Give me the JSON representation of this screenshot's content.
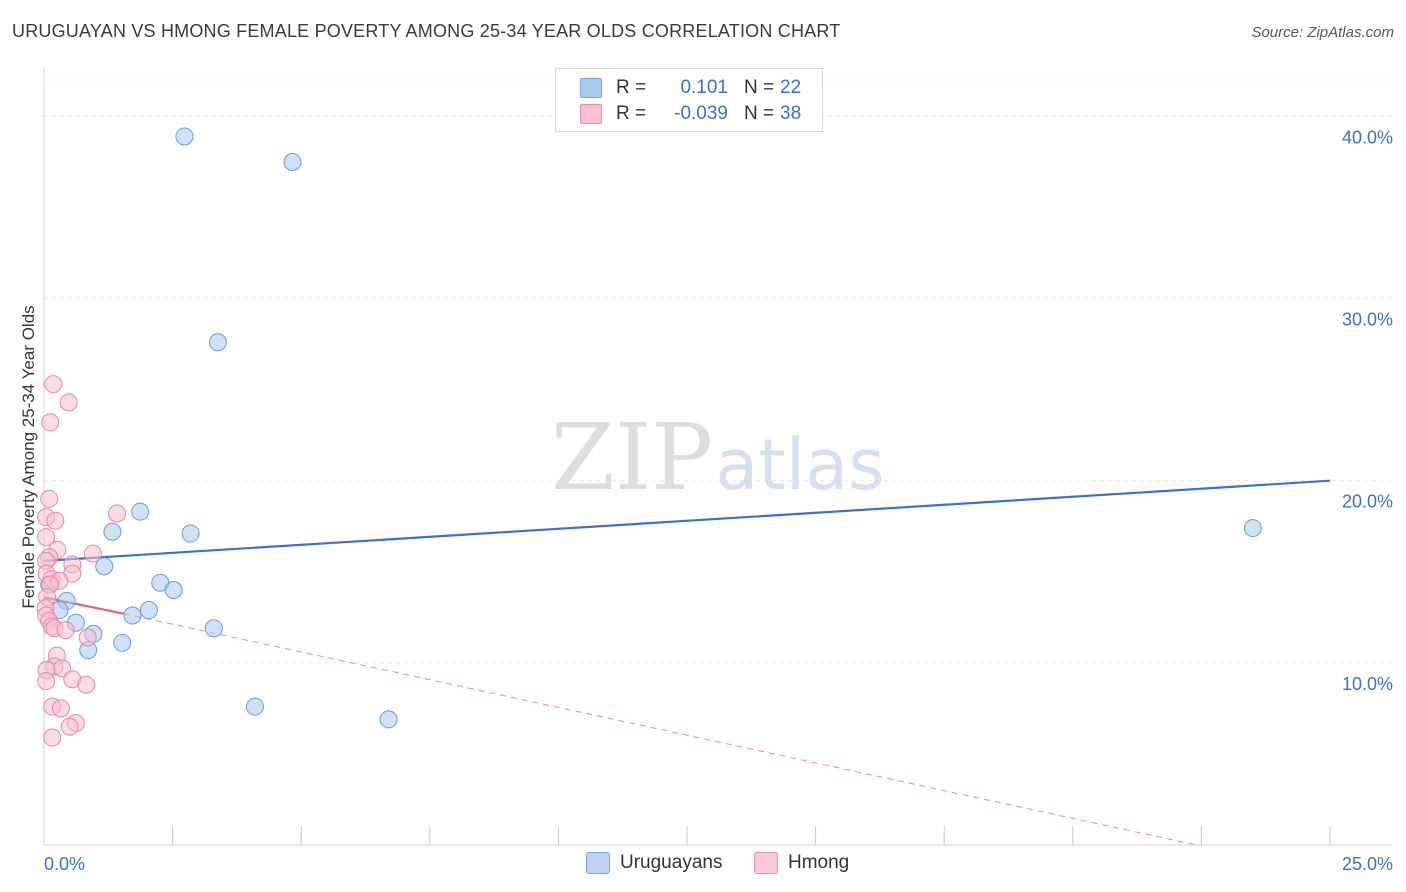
{
  "title": "URUGUAYAN VS HMONG FEMALE POVERTY AMONG 25-34 YEAR OLDS CORRELATION CHART",
  "source": "Source: ZipAtlas.com",
  "watermark": {
    "zip": "ZIP",
    "atlas": "atlas"
  },
  "legend_top": [
    {
      "r_label": "R =",
      "r_value": "0.101",
      "n_label": "N =",
      "n_value": "22",
      "color": "#a8c8f0",
      "border": "#7aa8e0"
    },
    {
      "r_label": "R =",
      "r_value": "-0.039",
      "n_label": "N =",
      "n_value": "38",
      "color": "#f8c0d0",
      "border": "#e890aa"
    }
  ],
  "legend_bottom": [
    {
      "label": "Uruguayans",
      "color": "#bcd4f4",
      "border": "#7aa8e0"
    },
    {
      "label": "Hmong",
      "color": "#f9cbd9",
      "border": "#e890aa"
    }
  ],
  "chart_data": {
    "type": "scatter",
    "title": "URUGUAYAN VS HMONG FEMALE POVERTY AMONG 25-34 YEAR OLDS CORRELATION CHART",
    "xlabel": "",
    "ylabel": "Female Poverty Among 25-34 Year Olds",
    "xlim": [
      0,
      25
    ],
    "ylim": [
      0,
      42
    ],
    "x_tick_labels": [
      {
        "value": 0,
        "label": "0.0%"
      },
      {
        "value": 25,
        "label": "25.0%"
      }
    ],
    "x_minor_ticks": [
      2.5,
      5,
      7.5,
      10,
      12.5,
      15,
      17.5,
      20,
      22.5,
      25
    ],
    "y_ticks": [
      {
        "value": 10,
        "label": "10.0%"
      },
      {
        "value": 20,
        "label": "20.0%"
      },
      {
        "value": 30,
        "label": "30.0%"
      },
      {
        "value": 40,
        "label": "40.0%"
      }
    ],
    "series": [
      {
        "name": "Uruguayans",
        "color": "#a8c8f0",
        "stroke": "#6a9cdc",
        "points": [
          [
            2.73,
            38.9
          ],
          [
            4.83,
            37.5
          ],
          [
            3.38,
            27.6
          ],
          [
            23.5,
            17.4
          ],
          [
            1.87,
            18.3
          ],
          [
            1.33,
            17.2
          ],
          [
            2.85,
            17.1
          ],
          [
            1.17,
            15.3
          ],
          [
            2.26,
            14.4
          ],
          [
            2.52,
            14.0
          ],
          [
            0.1,
            14.3
          ],
          [
            0.44,
            13.4
          ],
          [
            0.3,
            12.9
          ],
          [
            2.04,
            12.9
          ],
          [
            1.72,
            12.6
          ],
          [
            0.62,
            12.2
          ],
          [
            3.3,
            11.9
          ],
          [
            0.96,
            11.6
          ],
          [
            1.52,
            11.1
          ],
          [
            0.86,
            10.7
          ],
          [
            4.1,
            7.6
          ],
          [
            6.7,
            6.9
          ]
        ]
      },
      {
        "name": "Hmong",
        "color": "#f8c0d0",
        "stroke": "#e48aa6",
        "points": [
          [
            0.18,
            25.3
          ],
          [
            0.48,
            24.3
          ],
          [
            0.12,
            23.2
          ],
          [
            0.1,
            19.0
          ],
          [
            1.42,
            18.2
          ],
          [
            0.04,
            18.0
          ],
          [
            0.22,
            17.8
          ],
          [
            0.04,
            16.9
          ],
          [
            0.26,
            16.2
          ],
          [
            0.95,
            16.0
          ],
          [
            0.1,
            15.8
          ],
          [
            0.55,
            15.4
          ],
          [
            0.04,
            15.6
          ],
          [
            0.05,
            14.9
          ],
          [
            0.55,
            14.9
          ],
          [
            0.15,
            14.6
          ],
          [
            0.3,
            14.5
          ],
          [
            0.12,
            14.3
          ],
          [
            0.06,
            13.6
          ],
          [
            0.03,
            13.0
          ],
          [
            0.04,
            12.6
          ],
          [
            0.1,
            12.3
          ],
          [
            0.15,
            12.0
          ],
          [
            0.2,
            11.9
          ],
          [
            0.42,
            11.8
          ],
          [
            0.85,
            11.4
          ],
          [
            0.25,
            10.4
          ],
          [
            0.2,
            9.8
          ],
          [
            0.35,
            9.7
          ],
          [
            0.05,
            9.6
          ],
          [
            0.55,
            9.1
          ],
          [
            0.04,
            9.0
          ],
          [
            0.82,
            8.8
          ],
          [
            0.16,
            7.6
          ],
          [
            0.33,
            7.5
          ],
          [
            0.62,
            6.7
          ],
          [
            0.5,
            6.5
          ],
          [
            0.16,
            5.9
          ]
        ]
      }
    ],
    "trend_lines": [
      {
        "series": "Uruguayans",
        "x": [
          0,
          25
        ],
        "y": [
          15.6,
          20.0
        ],
        "style": "solid",
        "color": "#3a72c9"
      },
      {
        "series": "Hmong",
        "x": [
          0,
          1.55
        ],
        "y": [
          13.6,
          12.7
        ],
        "style": "solid",
        "color": "#e0608a"
      },
      {
        "series": "Hmong",
        "x": [
          1.55,
          22.4
        ],
        "y": [
          12.7,
          0.0
        ],
        "style": "dashed",
        "color": "#e88aa8"
      }
    ]
  }
}
